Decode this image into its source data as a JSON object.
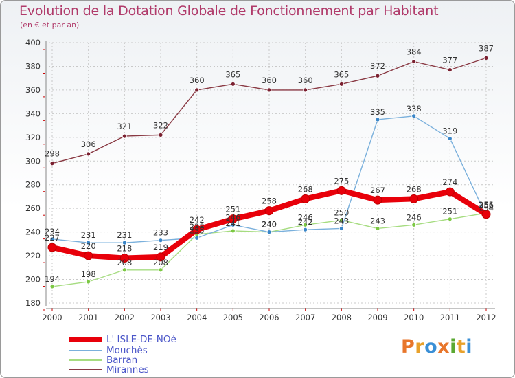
{
  "header": {
    "title": "Evolution de la Dotation Globale de Fonctionnement par Habitant",
    "subtitle": "(en € et par an)"
  },
  "brand": {
    "text": "Proxiti",
    "colors": [
      "#e8762b",
      "#e8a12b",
      "#3a8fd6",
      "#e8762b",
      "#5aa832",
      "#e8a12b",
      "#3a8fd6"
    ]
  },
  "chart_data": {
    "type": "line",
    "title": "Evolution de la Dotation Globale de Fonctionnement par Habitant",
    "subtitle": "(en € et par an)",
    "xlabel": "",
    "ylabel": "",
    "x": [
      "2000",
      "2001",
      "2002",
      "2003",
      "2004",
      "2005",
      "2006",
      "2007",
      "2008",
      "2009",
      "2010",
      "2011",
      "2012"
    ],
    "ylim": [
      180,
      400
    ],
    "yticks": [
      "180",
      "200",
      "220",
      "240",
      "260",
      "280",
      "300",
      "320",
      "340",
      "360",
      "380",
      "400"
    ],
    "grid": true,
    "legend": "bottom-left",
    "series": [
      {
        "name": "Mirannes",
        "color": "#7a2030",
        "line_color": "#8a3a44",
        "values": [
          298,
          306,
          321,
          322,
          360,
          365,
          360,
          360,
          365,
          372,
          384,
          377,
          387
        ],
        "labels": [
          "298",
          "306",
          "321",
          "322",
          "360",
          "365",
          "360",
          "360",
          "365",
          "372",
          "384",
          "377",
          "387"
        ]
      },
      {
        "name": "Barran",
        "color": "#7cc843",
        "line_color": "#a6dc80",
        "values": [
          194,
          198,
          208,
          208,
          238,
          241,
          240,
          246,
          250,
          243,
          246,
          251,
          256
        ],
        "labels": [
          "194",
          "198",
          "208",
          "208",
          "238",
          "241",
          "240",
          "246",
          "250",
          "243",
          "246",
          "251",
          "256"
        ]
      },
      {
        "name": "Mouchès",
        "color": "#3a86c8",
        "line_color": "#7ab0dc",
        "values": [
          234,
          231,
          231,
          233,
          235,
          246,
          240,
          242,
          243,
          335,
          338,
          319,
          254
        ],
        "labels": [
          "234",
          "231",
          "231",
          "233",
          "235",
          "246",
          "240",
          "242",
          "243",
          "335",
          "338",
          "319",
          "254"
        ]
      },
      {
        "name": "L' ISLE-DE-NOé",
        "color": "#e8000a",
        "line_color": "#e8000a",
        "values": [
          227,
          220,
          218,
          219,
          242,
          251,
          258,
          268,
          275,
          267,
          268,
          274,
          255
        ],
        "labels": [
          "227",
          "220",
          "218",
          "219",
          "242",
          "251",
          "258",
          "268",
          "275",
          "267",
          "268",
          "274",
          "255"
        ]
      }
    ],
    "legend_order": [
      "L' ISLE-DE-NOé",
      "Mouchès",
      "Barran",
      "Mirannes"
    ]
  }
}
